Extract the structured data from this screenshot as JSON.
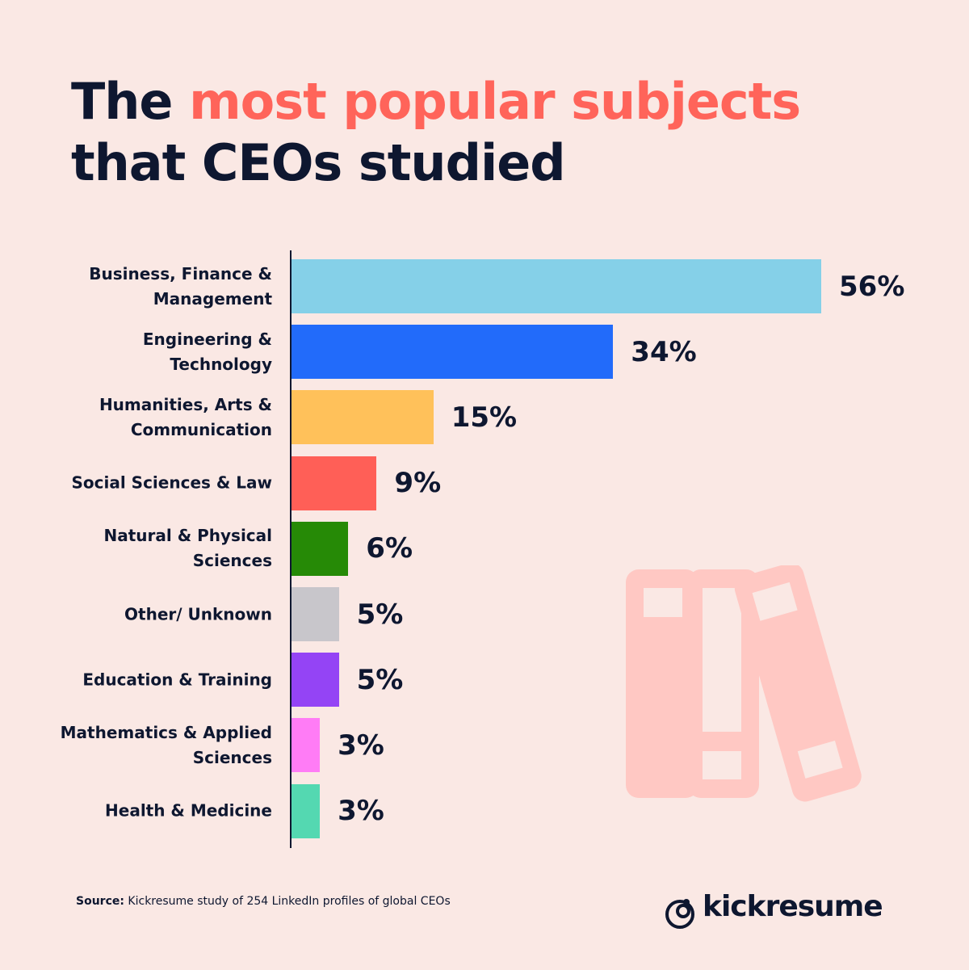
{
  "chart_data": {
    "type": "bar",
    "orientation": "horizontal",
    "title_parts": [
      "The",
      "most popular subjects",
      "that CEOs studied"
    ],
    "categories": [
      "Business, Finance & Management",
      "Engineering & Technology",
      "Humanities, Arts & Communication",
      "Social Sciences & Law",
      "Natural & Physical Sciences",
      "Other/ Unknown",
      "Education & Training",
      "Mathematics & Applied Sciences",
      "Health & Medicine"
    ],
    "values": [
      56,
      34,
      15,
      9,
      6,
      5,
      5,
      3,
      3
    ],
    "value_labels": [
      "56%",
      "34%",
      "15%",
      "9%",
      "6%",
      "5%",
      "5%",
      "3%",
      "3%"
    ],
    "colors": [
      "#85d0e8",
      "#226bfa",
      "#ffc15a",
      "#ff5f57",
      "#268a06",
      "#c8c6cb",
      "#9444f5",
      "#ff7cf6",
      "#54d8b1"
    ],
    "source_label": "Source:",
    "source": "Kickresume study of 254 LinkedIn profiles of global CEOs",
    "brand": "kickresume"
  }
}
